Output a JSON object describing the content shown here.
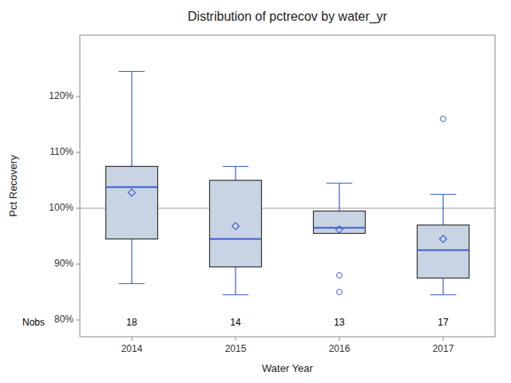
{
  "chart_data": {
    "type": "box",
    "title": "Distribution of pctrecov by water_yr",
    "x_label": "Water Year",
    "y_label": "Pct Recovery",
    "categories": [
      "2014",
      "2015",
      "2016",
      "2017"
    ],
    "q1s": [
      94.5,
      89.5,
      95.5,
      87.5
    ],
    "medians": [
      103.8,
      94.5,
      96.5,
      92.5
    ],
    "q3s": [
      107.5,
      105.0,
      99.5,
      97.0
    ],
    "whisker_lows": [
      86.5,
      84.5,
      95.5,
      84.5
    ],
    "whisker_highs": [
      124.5,
      107.5,
      104.5,
      102.5
    ],
    "means": [
      102.8,
      96.8,
      96.2,
      94.5
    ],
    "outliers": [
      [],
      [],
      [
        88.0,
        85.0
      ],
      [
        116.0
      ]
    ],
    "nobs_label": "Nobs",
    "nobs": [
      18,
      14,
      13,
      17
    ],
    "nobs_y": 79.5,
    "reference_line": 100,
    "ylim": [
      77,
      131
    ],
    "yticks": [
      {
        "value": 80,
        "label": "80%"
      },
      {
        "value": 90,
        "label": "90%"
      },
      {
        "value": 100,
        "label": "100%"
      },
      {
        "value": 110,
        "label": "110%"
      },
      {
        "value": 120,
        "label": "120%"
      }
    ],
    "color": "#c8d4e3",
    "grid": false
  }
}
